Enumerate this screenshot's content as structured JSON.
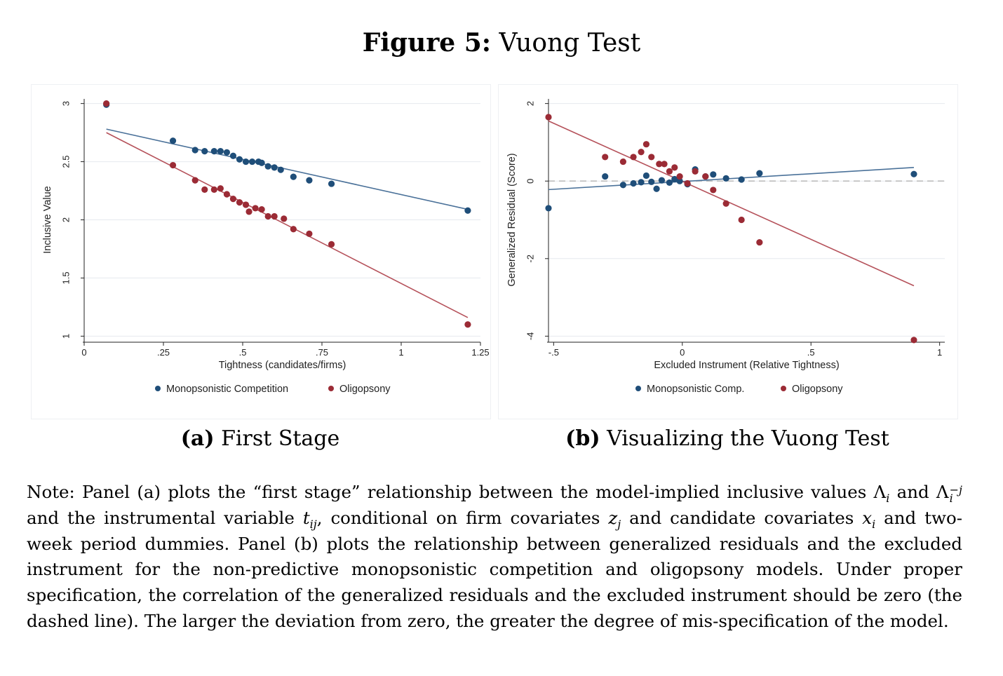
{
  "figure": {
    "label": "Figure 5:",
    "title": "Vuong Test"
  },
  "colors": {
    "series_blue": "#1f4e79",
    "series_red": "#9b2b35",
    "line_blue": "#4a7199",
    "line_red": "#b5515a",
    "grid": "#e6e9ee",
    "dashed": "#bdbdbd"
  },
  "panels": [
    {
      "caption_label": "(a)",
      "caption_text": "First Stage",
      "legend": [
        "Monopsonistic Competition",
        "Oligopsony"
      ]
    },
    {
      "caption_label": "(b)",
      "caption_text": "Visualizing the Vuong Test",
      "legend": [
        "Monopsonistic Comp.",
        "Oligopsony"
      ]
    }
  ],
  "chart_data": [
    {
      "type": "scatter",
      "xlabel": "Tightness (candidates/firms)",
      "ylabel": "Inclusive Value",
      "xlim": [
        0,
        1.25
      ],
      "ylim": [
        1,
        3
      ],
      "xticks": [
        0,
        0.25,
        0.5,
        0.75,
        1,
        1.25
      ],
      "xtick_labels": [
        "0",
        ".25",
        ".5",
        ".75",
        "1",
        "1.25"
      ],
      "yticks": [
        1,
        1.5,
        2,
        2.5,
        3
      ],
      "ytick_labels": [
        "1",
        "1.5",
        "2",
        "2.5",
        "3"
      ],
      "grid": true,
      "legend_position": "bottom",
      "series": [
        {
          "name": "Monopsonistic Competition",
          "points": [
            [
              0.07,
              2.99
            ],
            [
              0.28,
              2.68
            ],
            [
              0.35,
              2.6
            ],
            [
              0.38,
              2.59
            ],
            [
              0.41,
              2.59
            ],
            [
              0.43,
              2.59
            ],
            [
              0.45,
              2.58
            ],
            [
              0.47,
              2.55
            ],
            [
              0.49,
              2.52
            ],
            [
              0.51,
              2.5
            ],
            [
              0.53,
              2.5
            ],
            [
              0.55,
              2.5
            ],
            [
              0.56,
              2.49
            ],
            [
              0.58,
              2.46
            ],
            [
              0.6,
              2.45
            ],
            [
              0.62,
              2.43
            ],
            [
              0.66,
              2.37
            ],
            [
              0.71,
              2.34
            ],
            [
              0.78,
              2.31
            ],
            [
              1.21,
              2.08
            ]
          ],
          "fit": [
            [
              0.07,
              2.78
            ],
            [
              1.21,
              2.09
            ]
          ]
        },
        {
          "name": "Oligopsony",
          "points": [
            [
              0.07,
              3.0
            ],
            [
              0.28,
              2.47
            ],
            [
              0.35,
              2.34
            ],
            [
              0.38,
              2.26
            ],
            [
              0.41,
              2.26
            ],
            [
              0.43,
              2.27
            ],
            [
              0.45,
              2.22
            ],
            [
              0.47,
              2.18
            ],
            [
              0.49,
              2.15
            ],
            [
              0.51,
              2.13
            ],
            [
              0.52,
              2.07
            ],
            [
              0.54,
              2.1
            ],
            [
              0.56,
              2.09
            ],
            [
              0.58,
              2.03
            ],
            [
              0.6,
              2.03
            ],
            [
              0.63,
              2.01
            ],
            [
              0.66,
              1.92
            ],
            [
              0.71,
              1.88
            ],
            [
              0.78,
              1.79
            ],
            [
              1.21,
              1.1
            ]
          ],
          "fit": [
            [
              0.07,
              2.75
            ],
            [
              1.21,
              1.16
            ]
          ]
        }
      ]
    },
    {
      "type": "scatter",
      "xlabel": "Excluded Instrument (Relative Tightness)",
      "ylabel": "Generalized Residual (Score)",
      "xlim": [
        -0.5,
        1
      ],
      "ylim": [
        -4,
        2
      ],
      "xticks": [
        -0.5,
        0,
        0.5,
        1
      ],
      "xtick_labels": [
        "-.5",
        "0",
        ".5",
        "1"
      ],
      "yticks": [
        -4,
        -2,
        0,
        2
      ],
      "ytick_labels": [
        "-4",
        "-2",
        "0",
        "2"
      ],
      "reference_line_y": 0,
      "grid": true,
      "legend_position": "bottom",
      "series": [
        {
          "name": "Monopsonistic Comp.",
          "points": [
            [
              -0.52,
              -0.7
            ],
            [
              -0.3,
              0.12
            ],
            [
              -0.23,
              -0.1
            ],
            [
              -0.19,
              -0.06
            ],
            [
              -0.16,
              -0.03
            ],
            [
              -0.14,
              0.14
            ],
            [
              -0.12,
              -0.02
            ],
            [
              -0.1,
              -0.2
            ],
            [
              -0.08,
              0.02
            ],
            [
              -0.05,
              -0.04
            ],
            [
              -0.03,
              0.05
            ],
            [
              -0.01,
              0.0
            ],
            [
              0.02,
              -0.08
            ],
            [
              0.05,
              0.3
            ],
            [
              0.09,
              0.12
            ],
            [
              0.12,
              0.17
            ],
            [
              0.17,
              0.07
            ],
            [
              0.23,
              0.04
            ],
            [
              0.3,
              0.2
            ],
            [
              0.9,
              0.18
            ]
          ],
          "fit": [
            [
              -0.52,
              -0.22
            ],
            [
              0.9,
              0.35
            ]
          ]
        },
        {
          "name": "Oligopsony",
          "points": [
            [
              -0.52,
              1.65
            ],
            [
              -0.3,
              0.62
            ],
            [
              -0.23,
              0.5
            ],
            [
              -0.19,
              0.62
            ],
            [
              -0.16,
              0.75
            ],
            [
              -0.14,
              0.95
            ],
            [
              -0.12,
              0.62
            ],
            [
              -0.09,
              0.44
            ],
            [
              -0.07,
              0.44
            ],
            [
              -0.05,
              0.25
            ],
            [
              -0.03,
              0.35
            ],
            [
              -0.01,
              0.12
            ],
            [
              0.02,
              -0.06
            ],
            [
              0.05,
              0.25
            ],
            [
              0.09,
              0.12
            ],
            [
              0.12,
              -0.23
            ],
            [
              0.17,
              -0.58
            ],
            [
              0.23,
              -1.0
            ],
            [
              0.3,
              -1.58
            ],
            [
              0.9,
              -4.1
            ]
          ],
          "fit": [
            [
              -0.52,
              1.55
            ],
            [
              0.9,
              -2.7
            ]
          ]
        }
      ]
    }
  ],
  "note": {
    "segments": [
      {
        "t": "Note: Panel (a) plots the “first stage” relationship between the model-implied inclusive values "
      },
      {
        "m": "Λ",
        "sub": "i"
      },
      {
        "t": " and "
      },
      {
        "m": "Λ",
        "sub": "i",
        "sup": "−j"
      },
      {
        "t": " and the instrumental variable "
      },
      {
        "m": "t",
        "sub": "ij"
      },
      {
        "t": ", conditional on firm covariates "
      },
      {
        "m": "z",
        "sub": "j"
      },
      {
        "t": " and candidate covariates "
      },
      {
        "m": "x",
        "sub": "i"
      },
      {
        "t": " and two-week period dummies. Panel (b) plots the relationship between generalized residuals and the excluded instrument for the non-predictive monopsonistic competition and oligopsony models. Under proper specification, the correlation of the generalized residuals and the excluded instrument should be zero (the dashed line). The larger the deviation from zero, the greater the degree of mis-specification of the model."
      }
    ]
  }
}
